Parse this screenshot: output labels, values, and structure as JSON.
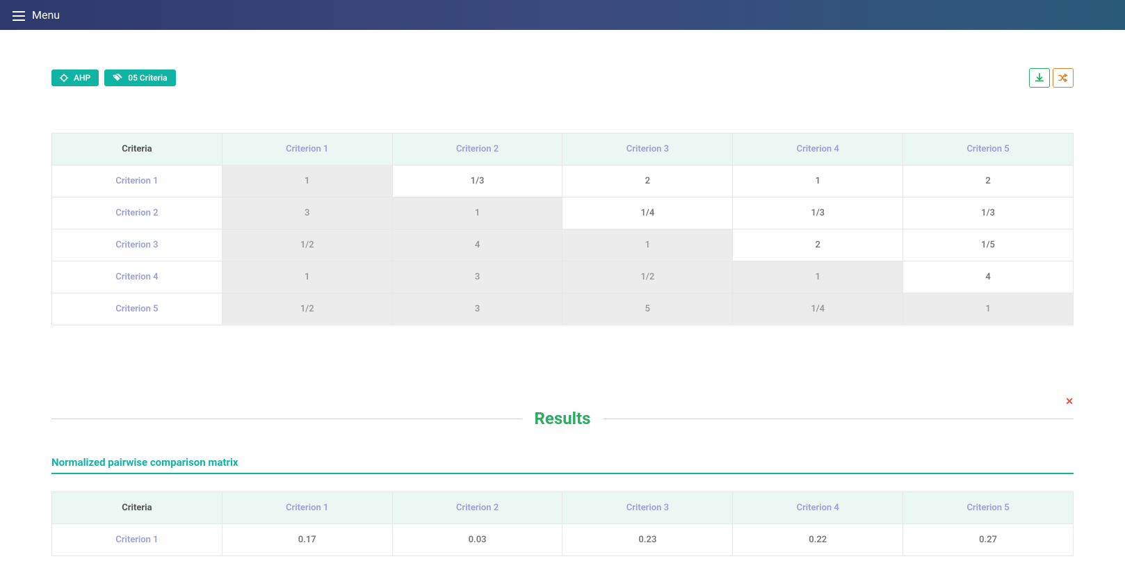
{
  "topbar": {
    "menu_label": "Menu"
  },
  "tags": {
    "ahp_label": "AHP",
    "criteria_label": "05 Criteria"
  },
  "pairwise": {
    "corner_label": "Criteria",
    "col_headers": [
      "Criterion 1",
      "Criterion 2",
      "Criterion 3",
      "Criterion 4",
      "Criterion 5"
    ],
    "row_headers": [
      "Criterion 1",
      "Criterion 2",
      "Criterion 3",
      "Criterion 4",
      "Criterion 5"
    ],
    "cells": [
      [
        "1",
        "1/3",
        "2",
        "1",
        "2"
      ],
      [
        "3",
        "1",
        "1/4",
        "1/3",
        "1/3"
      ],
      [
        "1/2",
        "4",
        "1",
        "2",
        "1/5"
      ],
      [
        "1",
        "3",
        "1/2",
        "1",
        "4"
      ],
      [
        "1/2",
        "3",
        "5",
        "1/4",
        "1"
      ]
    ],
    "shaded": [
      [
        true,
        false,
        false,
        false,
        false
      ],
      [
        true,
        true,
        false,
        false,
        false
      ],
      [
        true,
        true,
        true,
        false,
        false
      ],
      [
        true,
        true,
        true,
        true,
        false
      ],
      [
        true,
        true,
        true,
        true,
        true
      ]
    ],
    "header_bg": "#eaf7f3",
    "header_text_color": "#9b9fdc",
    "corner_text_color": "#555555",
    "row_header_text_color": "#9b9fdc",
    "cell_text_color": "#777777",
    "shaded_bg": "#ececec",
    "border_color": "#e8e8e8",
    "cell_fontsize": 13
  },
  "results": {
    "title": "Results",
    "title_color": "#27ae60",
    "close_color": "#e74c3c"
  },
  "normalized": {
    "section_title": "Normalized pairwise comparison matrix",
    "section_title_color": "#10b4a3",
    "corner_label": "Criteria",
    "col_headers": [
      "Criterion 1",
      "Criterion 2",
      "Criterion 3",
      "Criterion 4",
      "Criterion 5"
    ],
    "row_headers": [
      "Criterion 1"
    ],
    "cells": [
      [
        "0.17",
        "0.03",
        "0.23",
        "0.22",
        "0.27"
      ]
    ],
    "header_bg": "#eaf7f3",
    "header_text_color": "#9b9fdc",
    "row_header_text_color": "#9b9fdc",
    "cell_text_color": "#777777"
  },
  "colors": {
    "topbar_gradient_start": "#2e3a6e",
    "topbar_gradient_end": "#2a5a7a",
    "tag_bg": "#10b4a3",
    "action_green": "#27ae60",
    "action_orange": "#e67e22"
  }
}
